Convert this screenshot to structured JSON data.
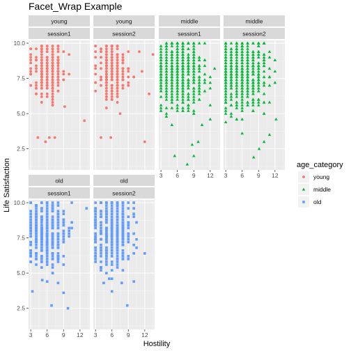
{
  "chart_data": {
    "type": "scatter",
    "title": "Facet_Wrap Example",
    "xlabel": "Hostility",
    "ylabel": "Life Satisfaction",
    "xlim": [
      2.6,
      13.8
    ],
    "ylim": [
      1.0,
      10.2
    ],
    "x_ticks": [
      3,
      6,
      9,
      12
    ],
    "y_ticks": [
      2.5,
      5.0,
      7.5,
      10.0
    ],
    "x_tick_labels": [
      "3",
      "6",
      "9",
      "12"
    ],
    "y_tick_labels": [
      "2.5",
      "5.0",
      "7.5",
      "10.0"
    ],
    "grid": true,
    "legend": {
      "title": "age_category",
      "position": "right",
      "entries": [
        {
          "label": "young",
          "color": "#F8766D",
          "shape": "circle"
        },
        {
          "label": "middle",
          "color": "#00BA38",
          "shape": "triangle"
        },
        {
          "label": "old",
          "color": "#619CFF",
          "shape": "square"
        }
      ]
    },
    "panels": [
      {
        "age": "young",
        "session": "session1",
        "row": 0,
        "col": 0,
        "n": 220,
        "x_center": 6.2,
        "x_spread": 1.6,
        "x_min": 3,
        "x_max": 11.5,
        "y_center": 8.1,
        "y_spread": 1.0,
        "y_min": 5.0,
        "y_max": 9.8,
        "outliers": [
          [
            4.3,
            3.3
          ],
          [
            5.7,
            3.0
          ],
          [
            6.4,
            3.3
          ],
          [
            7.4,
            3.3
          ],
          [
            12.8,
            4.5
          ],
          [
            9.2,
            5.5
          ]
        ]
      },
      {
        "age": "young",
        "session": "session2",
        "row": 0,
        "col": 1,
        "n": 220,
        "x_center": 6.3,
        "x_spread": 1.6,
        "x_min": 3,
        "x_max": 11.5,
        "y_center": 8.1,
        "y_spread": 1.0,
        "y_min": 5.2,
        "y_max": 9.8,
        "outliers": [
          [
            4.0,
            3.3
          ],
          [
            5.8,
            3.3
          ],
          [
            12.0,
            3.0
          ],
          [
            13.5,
            9.2
          ],
          [
            12.8,
            6.4
          ],
          [
            7.5,
            5.0
          ]
        ]
      },
      {
        "age": "middle",
        "session": "session1",
        "row": 0,
        "col": 2,
        "n": 520,
        "x_center": 6.3,
        "x_spread": 2.2,
        "x_min": 3,
        "x_max": 12.8,
        "y_center": 7.9,
        "y_spread": 1.3,
        "y_min": 3.6,
        "y_max": 10.0,
        "outliers": [
          [
            7.8,
            1.4
          ],
          [
            5.5,
            2.0
          ],
          [
            9.0,
            2.0
          ],
          [
            8.7,
            2.8
          ],
          [
            9.8,
            3.0
          ],
          [
            10.5,
            4.2
          ],
          [
            12.0,
            5.6
          ]
        ]
      },
      {
        "age": "middle",
        "session": "session2",
        "row": 0,
        "col": 3,
        "n": 520,
        "x_center": 6.3,
        "x_spread": 2.2,
        "x_min": 3,
        "x_max": 12.8,
        "y_center": 7.9,
        "y_spread": 1.3,
        "y_min": 3.6,
        "y_max": 10.0,
        "outliers": [
          [
            8.1,
            1.9
          ],
          [
            9.1,
            2.5
          ],
          [
            10.0,
            3.0
          ],
          [
            11.0,
            3.5
          ],
          [
            12.2,
            4.6
          ],
          [
            6.0,
            3.6
          ]
        ]
      },
      {
        "age": "old",
        "session": "session1",
        "row": 1,
        "col": 0,
        "n": 380,
        "x_center": 5.8,
        "x_spread": 1.8,
        "x_min": 3,
        "x_max": 10.5,
        "y_center": 7.9,
        "y_spread": 1.2,
        "y_min": 4.3,
        "y_max": 10.0,
        "outliers": [
          [
            3.3,
            3.7
          ],
          [
            9.8,
            2.5
          ],
          [
            6.8,
            2.7
          ],
          [
            5.1,
            4.5
          ],
          [
            13.2,
            9.6
          ],
          [
            9.0,
            3.6
          ],
          [
            8.0,
            4.3
          ]
        ]
      },
      {
        "age": "old",
        "session": "session2",
        "row": 1,
        "col": 1,
        "n": 380,
        "x_center": 5.9,
        "x_spread": 1.8,
        "x_min": 3,
        "x_max": 10.5,
        "y_center": 7.9,
        "y_spread": 1.2,
        "y_min": 4.3,
        "y_max": 10.0,
        "outliers": [
          [
            4.5,
            4.3
          ],
          [
            6.0,
            3.7
          ],
          [
            8.8,
            2.7
          ],
          [
            7.8,
            4.3
          ],
          [
            12.0,
            6.4
          ],
          [
            5.5,
            4.6
          ]
        ]
      }
    ]
  }
}
